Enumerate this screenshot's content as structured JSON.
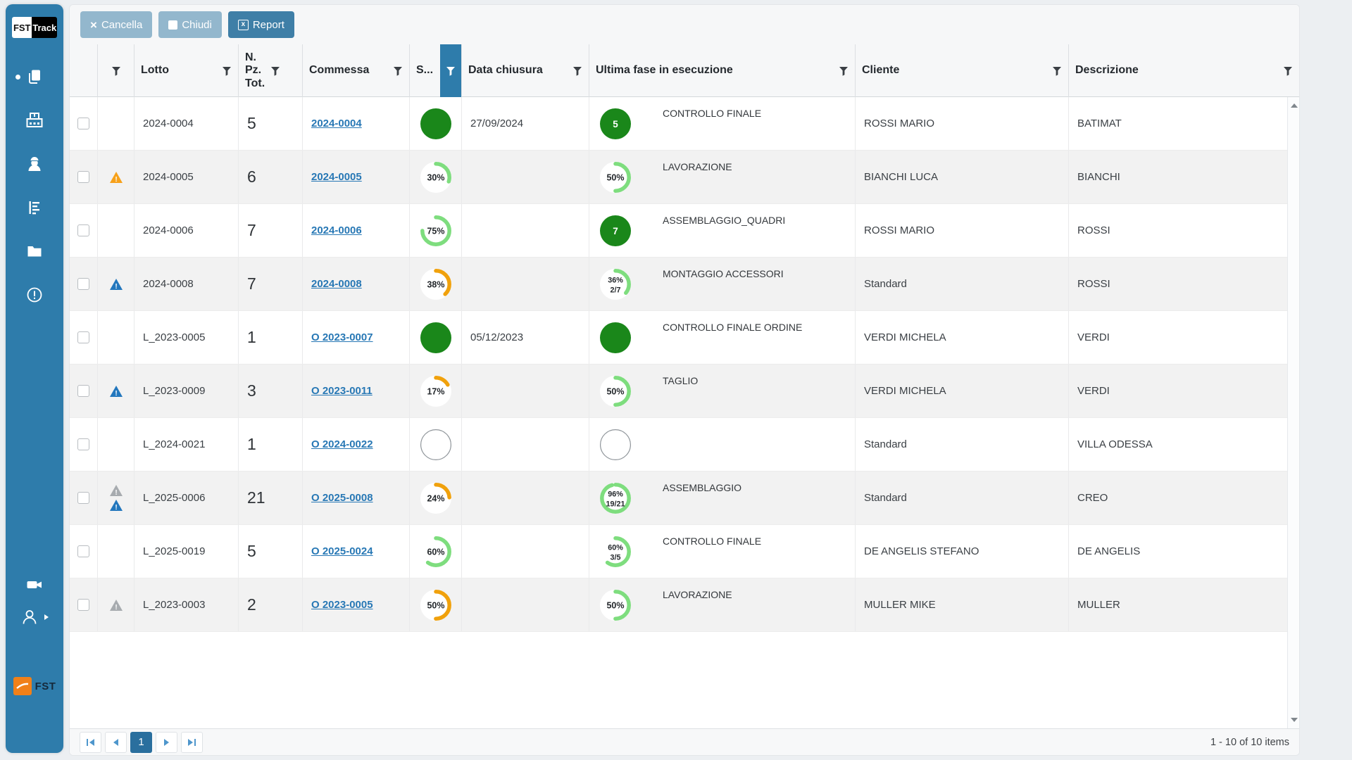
{
  "app": {
    "logo_primary": "FST",
    "logo_secondary": "Track",
    "footer_logo_text": "FST"
  },
  "toolbar": {
    "cancel_label": "Cancella",
    "close_label": "Chiudi",
    "report_label": "Report"
  },
  "table": {
    "columns": [
      {
        "key": "select",
        "label": "",
        "filter": false
      },
      {
        "key": "warnings",
        "label": "",
        "filter": true
      },
      {
        "key": "lotto",
        "label": "Lotto",
        "filter": true
      },
      {
        "key": "pieces",
        "label": "N. Pz. Tot.",
        "filter": true,
        "narrow": true
      },
      {
        "key": "stato_short",
        "label": "S...",
        "filter": true,
        "filter_active": true
      },
      {
        "key": "commessa",
        "label": "Commessa",
        "filter": true
      },
      {
        "key": "data_chiusura",
        "label": "Data chiusura",
        "filter": true
      },
      {
        "key": "fase",
        "label": "Ultima fase in esecuzione",
        "filter": true
      },
      {
        "key": "cliente",
        "label": "Cliente",
        "filter": true
      },
      {
        "key": "descrizione",
        "label": "Descrizione",
        "filter": true
      }
    ],
    "column_order": [
      "select",
      "warnings",
      "lotto",
      "pieces",
      "commessa",
      "stato_short",
      "data_chiusura",
      "fase",
      "cliente",
      "descrizione"
    ],
    "rows": [
      {
        "shaded": false,
        "warnings": [],
        "lotto": "2024-0004",
        "pieces": "5",
        "commessa": "2024-0004",
        "stato": {
          "type": "full"
        },
        "data_chiusura": "27/09/2024",
        "fase": {
          "type": "count",
          "value": "5"
        },
        "fase_label": "CONTROLLO FINALE",
        "cliente": "ROSSI MARIO",
        "descrizione": "BATIMAT"
      },
      {
        "shaded": true,
        "warnings": [
          "orange"
        ],
        "lotto": "2024-0005",
        "pieces": "6",
        "commessa": "2024-0005",
        "stato": {
          "type": "pct",
          "pct": 30,
          "color": "green",
          "label": "30%"
        },
        "data_chiusura": "",
        "fase": {
          "type": "pct",
          "pct": 50,
          "color": "green",
          "label": "50%"
        },
        "fase_label": "LAVORAZIONE",
        "cliente": "BIANCHI LUCA",
        "descrizione": "BIANCHI"
      },
      {
        "shaded": false,
        "warnings": [],
        "lotto": "2024-0006",
        "pieces": "7",
        "commessa": "2024-0006",
        "stato": {
          "type": "pct",
          "pct": 75,
          "color": "green",
          "label": "75%"
        },
        "data_chiusura": "",
        "fase": {
          "type": "count",
          "value": "7"
        },
        "fase_label": "ASSEMBLAGGIO_QUADRI",
        "cliente": "ROSSI MARIO",
        "descrizione": "ROSSI"
      },
      {
        "shaded": true,
        "warnings": [
          "blue"
        ],
        "lotto": "2024-0008",
        "pieces": "7",
        "commessa": "2024-0008",
        "stato": {
          "type": "pct",
          "pct": 38,
          "color": "orange",
          "label": "38%"
        },
        "data_chiusura": "",
        "fase": {
          "type": "pct",
          "pct": 36,
          "color": "green",
          "label": "36%",
          "sub": "2/7"
        },
        "fase_label": "MONTAGGIO ACCESSORI",
        "cliente": "Standard",
        "descrizione": "ROSSI"
      },
      {
        "shaded": false,
        "warnings": [],
        "lotto": "L_2023-0005",
        "pieces": "1",
        "commessa": "O 2023-0007",
        "stato": {
          "type": "full"
        },
        "data_chiusura": "05/12/2023",
        "fase": {
          "type": "full"
        },
        "fase_label": "CONTROLLO FINALE ORDINE",
        "cliente": "VERDI MICHELA",
        "descrizione": "VERDI"
      },
      {
        "shaded": true,
        "warnings": [
          "blue"
        ],
        "lotto": "L_2023-0009",
        "pieces": "3",
        "commessa": "O 2023-0011",
        "stato": {
          "type": "pct",
          "pct": 17,
          "color": "orange",
          "label": "17%"
        },
        "data_chiusura": "",
        "fase": {
          "type": "pct",
          "pct": 50,
          "color": "green",
          "label": "50%"
        },
        "fase_label": "TAGLIO",
        "cliente": "VERDI MICHELA",
        "descrizione": "VERDI"
      },
      {
        "shaded": false,
        "warnings": [],
        "lotto": "L_2024-0021",
        "pieces": "1",
        "commessa": "O 2024-0022",
        "stato": {
          "type": "empty"
        },
        "data_chiusura": "",
        "fase": {
          "type": "empty"
        },
        "fase_label": "",
        "cliente": "Standard",
        "descrizione": "VILLA ODESSA"
      },
      {
        "shaded": true,
        "warnings": [
          "gray",
          "blue"
        ],
        "lotto": "L_2025-0006",
        "pieces": "21",
        "commessa": "O 2025-0008",
        "stato": {
          "type": "pct",
          "pct": 24,
          "color": "orange",
          "label": "24%"
        },
        "data_chiusura": "",
        "fase": {
          "type": "pct",
          "pct": 96,
          "color": "green",
          "label": "96%",
          "sub": "19/21"
        },
        "fase_label": "ASSEMBLAGGIO",
        "cliente": "Standard",
        "descrizione": "CREO"
      },
      {
        "shaded": false,
        "warnings": [],
        "lotto": "L_2025-0019",
        "pieces": "5",
        "commessa": "O 2025-0024",
        "stato": {
          "type": "pct",
          "pct": 60,
          "color": "green",
          "label": "60%"
        },
        "data_chiusura": "",
        "fase": {
          "type": "pct",
          "pct": 60,
          "color": "green",
          "label": "60%",
          "sub": "3/5"
        },
        "fase_label": "CONTROLLO FINALE",
        "cliente": "DE ANGELIS STEFANO",
        "descrizione": "DE ANGELIS"
      },
      {
        "shaded": true,
        "warnings": [
          "gray"
        ],
        "lotto": "L_2023-0003",
        "pieces": "2",
        "commessa": "O 2023-0005",
        "stato": {
          "type": "pct",
          "pct": 50,
          "color": "orange",
          "label": "50%"
        },
        "data_chiusura": "",
        "fase": {
          "type": "pct",
          "pct": 50,
          "color": "green",
          "label": "50%"
        },
        "fase_label": "LAVORAZIONE",
        "cliente": "MULLER MIKE",
        "descrizione": "MULLER"
      }
    ]
  },
  "pagination": {
    "current_page": "1",
    "summary": "1 - 10 of 10 items"
  },
  "colors": {
    "page_bg": "#eceff2",
    "chrome_bg": "#f6f7f8",
    "sidebar": "#2e7cab",
    "accent": "#2e7cab",
    "button_muted": "#93b7cd",
    "button_report": "#3f7fa7",
    "link": "#2878b5",
    "green_dark": "#1a871a",
    "green_light": "#7edd7e",
    "orange": "#f0a10c",
    "warn_orange": "#f7a11a",
    "warn_blue": "#2377bd",
    "warn_gray": "#a7abaf",
    "row_alt": "#f2f2f2",
    "pager_active": "#2a6f9e",
    "pager_arrow": "#4e96cc",
    "footer_orange": "#f08019"
  }
}
